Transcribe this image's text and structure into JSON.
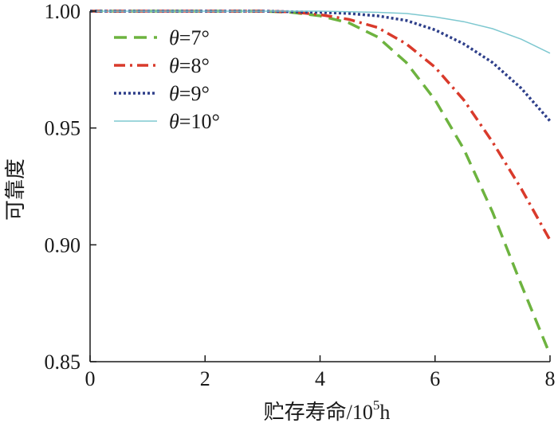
{
  "chart_data": {
    "type": "line",
    "xlabel": "贮存寿命/10",
    "xlabel_sup": "5",
    "xlabel_suffix": "h",
    "ylabel": "可靠度",
    "xlim": [
      0,
      8
    ],
    "ylim": [
      0.85,
      1.0
    ],
    "x_ticks": [
      "0",
      "2",
      "4",
      "6",
      "8"
    ],
    "y_ticks": [
      "1.00",
      "0.95",
      "0.90",
      "0.85"
    ],
    "grid": false,
    "legend_position": "top-left",
    "series": [
      {
        "name": "θ=7°",
        "label_symbol": "θ",
        "label_value": "=7°",
        "color": "#6db33f",
        "dash": "dashed",
        "x": [
          0,
          1,
          2,
          3,
          3.5,
          4,
          4.5,
          5,
          5.5,
          6,
          6.5,
          7,
          7.5,
          8
        ],
        "y": [
          1.0,
          1.0,
          1.0,
          1.0,
          0.9995,
          0.998,
          0.995,
          0.989,
          0.978,
          0.962,
          0.941,
          0.914,
          0.883,
          0.853
        ]
      },
      {
        "name": "θ=8°",
        "label_symbol": "θ",
        "label_value": "=8°",
        "color": "#d93a2b",
        "dash": "dashdot",
        "x": [
          0,
          1,
          2,
          3,
          3.5,
          4,
          4.5,
          5,
          5.5,
          6,
          6.5,
          7,
          7.5,
          8
        ],
        "y": [
          1.0,
          1.0,
          1.0,
          1.0,
          0.9997,
          0.9985,
          0.9965,
          0.993,
          0.986,
          0.976,
          0.962,
          0.944,
          0.924,
          0.902
        ]
      },
      {
        "name": "θ=9°",
        "label_symbol": "θ",
        "label_value": "=9°",
        "color": "#2e3f8a",
        "dash": "dotted",
        "x": [
          0,
          1,
          2,
          3,
          4,
          4.5,
          5,
          5.5,
          6,
          6.5,
          7,
          7.5,
          8
        ],
        "y": [
          1.0,
          1.0,
          1.0,
          1.0,
          0.9995,
          0.999,
          0.998,
          0.996,
          0.992,
          0.986,
          0.978,
          0.967,
          0.953
        ]
      },
      {
        "name": "θ=10°",
        "label_symbol": "θ",
        "label_value": "=10°",
        "color": "#7ec8d0",
        "dash": "solid",
        "x": [
          0,
          1,
          2,
          3,
          4,
          5,
          5.5,
          6,
          6.5,
          7,
          7.5,
          8
        ],
        "y": [
          1.0,
          1.0,
          1.0,
          1.0,
          1.0,
          0.9995,
          0.999,
          0.9975,
          0.9955,
          0.9925,
          0.988,
          0.982
        ]
      }
    ]
  }
}
